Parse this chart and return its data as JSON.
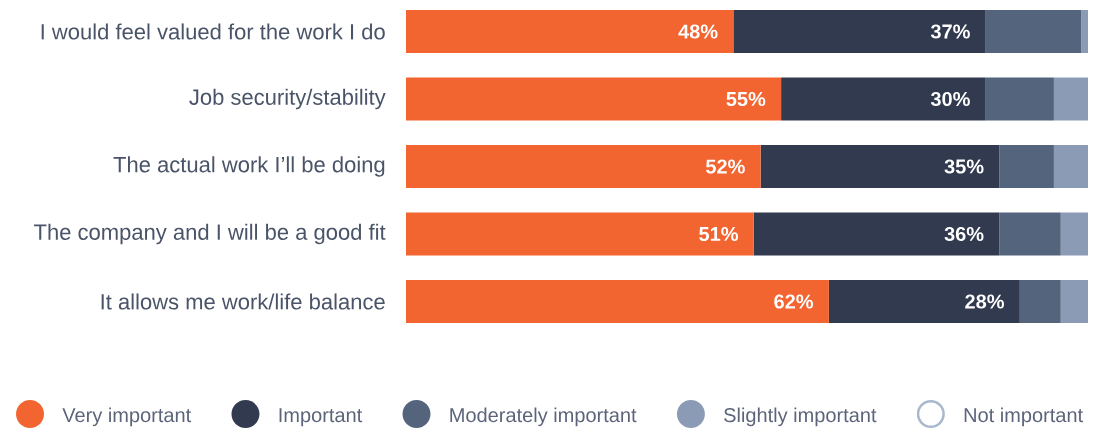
{
  "chart_data": {
    "type": "bar",
    "orientation": "horizontal",
    "stacked": true,
    "categories": [
      "I would feel valued for the work I do",
      "Job security/stability",
      "The actual work I’ll be doing",
      "The company and I will be a good fit",
      "It allows me work/life balance"
    ],
    "series": [
      {
        "name": "Very important",
        "color": "#f26531",
        "values": [
          48,
          55,
          52,
          51,
          62
        ],
        "value_labels": [
          "48%",
          "55%",
          "52%",
          "51%",
          "62%"
        ]
      },
      {
        "name": "Important",
        "color": "#323a4f",
        "values": [
          37,
          30,
          35,
          36,
          28
        ],
        "value_labels": [
          "37%",
          "30%",
          "35%",
          "36%",
          "28%"
        ]
      },
      {
        "name": "Moderately important",
        "color": "#54647c",
        "values": [
          14,
          10,
          8,
          9,
          6
        ]
      },
      {
        "name": "Slightly important",
        "color": "#8c9bb5",
        "values": [
          1,
          5,
          5,
          4,
          4
        ]
      },
      {
        "name": "Not important",
        "color": "#a8b8cd",
        "values": [
          null,
          null,
          null,
          null,
          null
        ]
      }
    ],
    "legend": "bottom"
  }
}
